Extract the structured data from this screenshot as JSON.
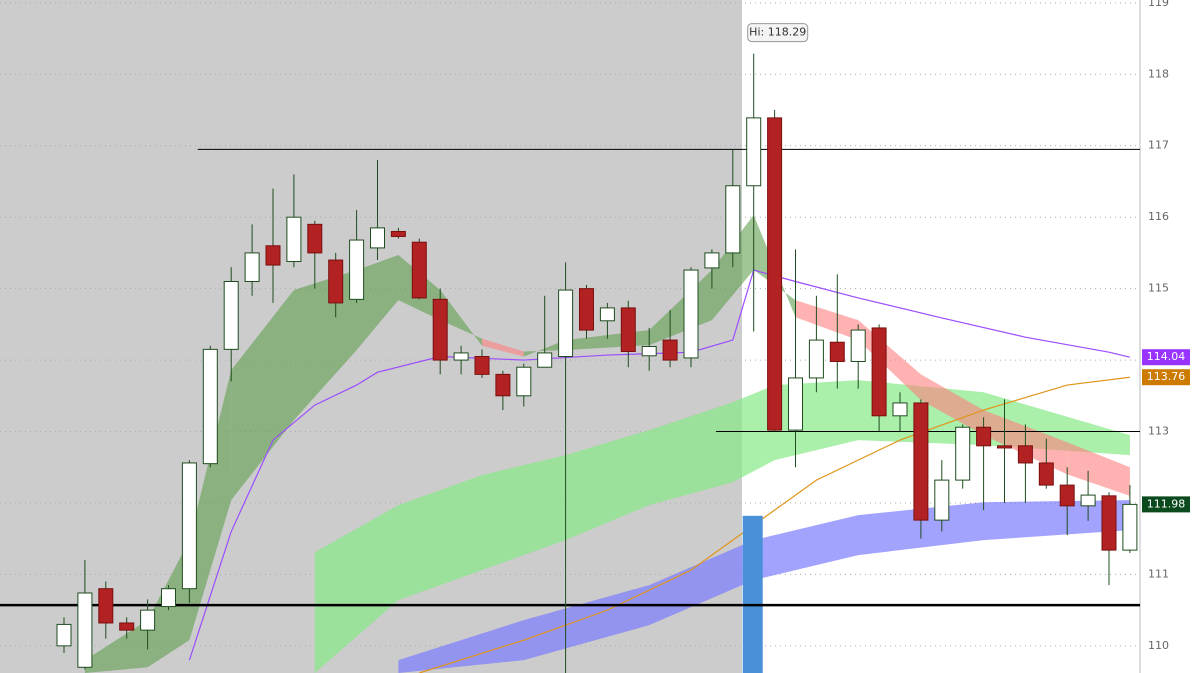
{
  "chart_data": {
    "type": "candlestick",
    "open": [
      110.0,
      109.7,
      110.8,
      110.32,
      110.22,
      110.55,
      110.8,
      112.55,
      114.15,
      115.1,
      115.6,
      115.38,
      115.9,
      115.4,
      114.85,
      115.57,
      115.8,
      115.65,
      114.85,
      114.0,
      114.05,
      113.8,
      113.5,
      113.9,
      114.05,
      115.0,
      114.55,
      114.73,
      114.06,
      114.28,
      114.03,
      115.29,
      115.5,
      116.44,
      117.39,
      113.02,
      113.75,
      114.25,
      113.98,
      114.45,
      113.22,
      113.4,
      111.76,
      112.32,
      113.06,
      112.8,
      112.8,
      112.56,
      112.25,
      111.96,
      112.1,
      111.34
    ],
    "high": [
      110.4,
      111.2,
      110.9,
      110.4,
      110.65,
      110.85,
      112.6,
      114.2,
      115.3,
      115.9,
      116.4,
      116.6,
      115.95,
      115.5,
      116.1,
      116.8,
      115.85,
      115.7,
      115.0,
      114.2,
      114.15,
      113.85,
      113.95,
      114.9,
      115.37,
      115.05,
      114.8,
      114.83,
      114.45,
      114.7,
      115.3,
      115.55,
      116.95,
      118.29,
      117.5,
      115.55,
      114.9,
      115.2,
      114.5,
      114.5,
      113.55,
      113.45,
      112.6,
      113.1,
      113.2,
      113.45,
      113.1,
      112.9,
      112.5,
      112.45,
      112.15,
      112.25
    ],
    "low": [
      109.9,
      109.67,
      110.1,
      110.1,
      109.95,
      110.5,
      110.6,
      112.5,
      113.7,
      114.9,
      114.8,
      115.3,
      115.0,
      114.6,
      114.8,
      115.4,
      115.7,
      114.85,
      113.8,
      113.8,
      113.75,
      113.3,
      113.35,
      113.9,
      109.6,
      114.3,
      114.3,
      113.9,
      113.85,
      113.9,
      113.9,
      115.0,
      115.3,
      114.4,
      113.0,
      112.5,
      113.55,
      113.6,
      113.6,
      113.0,
      113.0,
      111.5,
      111.6,
      112.2,
      111.9,
      112.0,
      112.0,
      112.2,
      111.55,
      111.75,
      110.85,
      111.3
    ],
    "close": [
      110.3,
      110.74,
      110.32,
      110.22,
      110.5,
      110.8,
      112.56,
      114.15,
      115.1,
      115.5,
      115.33,
      116.0,
      115.5,
      114.8,
      115.68,
      115.85,
      115.73,
      114.87,
      114.0,
      114.1,
      113.8,
      113.5,
      113.9,
      114.1,
      114.98,
      114.42,
      114.73,
      114.12,
      114.19,
      114.0,
      115.26,
      115.5,
      116.44,
      117.39,
      113.02,
      113.75,
      114.28,
      113.98,
      114.42,
      113.22,
      113.4,
      111.76,
      112.32,
      113.06,
      112.8,
      112.77,
      112.56,
      112.25,
      111.96,
      112.11,
      111.34,
      111.98
    ],
    "up_color": "#ffffff",
    "down_color": "#b22222",
    "wick_color": "#1f4d1f",
    "ylim": [
      109.62,
      119.04
    ],
    "yticks": [
      110,
      111,
      112,
      113,
      114,
      115,
      116,
      117,
      118,
      119
    ],
    "grid": true,
    "lines": [
      {
        "color": "#9b4dff",
        "x": [
          6,
          8,
          10,
          12,
          14,
          15,
          18,
          22,
          26,
          30,
          32,
          33,
          35,
          38,
          42,
          46,
          50,
          51
        ],
        "values": [
          109.8,
          111.6,
          112.88,
          113.37,
          113.65,
          113.83,
          114.05,
          114.0,
          114.07,
          114.11,
          114.28,
          115.26,
          115.1,
          114.87,
          114.59,
          114.32,
          114.11,
          114.04
        ]
      },
      {
        "color": "#e0941a",
        "x": [
          17,
          22,
          26,
          30,
          33,
          36,
          40,
          44,
          48,
          51
        ],
        "values": [
          109.62,
          110.08,
          110.5,
          111.06,
          111.69,
          112.32,
          112.88,
          113.3,
          113.65,
          113.76
        ]
      }
    ],
    "bands": [
      {
        "color": "#7b7bff",
        "x": [
          16,
          22,
          28,
          33,
          38,
          44,
          51
        ],
        "upper": [
          109.8,
          110.36,
          110.85,
          111.48,
          111.83,
          112.01,
          112.04
        ],
        "lower": [
          109.62,
          109.8,
          110.29,
          110.92,
          111.27,
          111.48,
          111.62
        ]
      },
      {
        "color": "#86e886",
        "x": [
          12,
          16,
          20,
          24,
          28,
          32,
          34,
          38,
          44,
          51
        ],
        "upper": [
          111.31,
          111.97,
          112.39,
          112.67,
          113.02,
          113.41,
          113.65,
          113.72,
          113.55,
          112.95
        ],
        "lower": [
          109.62,
          110.64,
          111.06,
          111.48,
          111.97,
          112.29,
          112.6,
          112.88,
          112.81,
          112.67
        ]
      }
    ],
    "cloud": {
      "up_color": "#5f9e4f",
      "down_color": "#ff7f7f",
      "x": [
        1,
        4,
        6,
        8,
        11,
        14,
        16,
        18,
        20,
        22,
        24,
        28,
        31,
        33,
        35,
        38,
        41,
        44,
        48,
        51
      ],
      "fast": [
        109.8,
        110.36,
        111.48,
        113.86,
        114.98,
        115.26,
        115.47,
        114.98,
        114.2,
        114.05,
        114.28,
        114.42,
        115.26,
        116.03,
        114.6,
        114.28,
        113.44,
        112.95,
        112.4,
        112.1
      ],
      "slow": [
        109.62,
        109.7,
        110.08,
        112.04,
        113.16,
        114.14,
        114.84,
        114.56,
        114.3,
        114.12,
        114.14,
        114.21,
        114.56,
        115.26,
        114.84,
        114.56,
        113.8,
        113.3,
        112.85,
        112.5
      ]
    },
    "hlines": [
      {
        "value": 116.95,
        "from": 6.4,
        "width": 1
      },
      {
        "value": 113.0,
        "from": 31.2,
        "width": 1
      },
      {
        "value": 110.57,
        "from": -3.1,
        "width": 2.5
      }
    ],
    "bar": {
      "x": 33,
      "value": 111.82,
      "color": "#4a90d9"
    },
    "annotation": "Hi: 118.29",
    "price_labels": [
      {
        "value": 114.04,
        "color": "#9933ff"
      },
      {
        "value": 113.76,
        "color": "#cc7a00"
      },
      {
        "value": 111.98,
        "color": "#0b4a1c"
      }
    ]
  }
}
